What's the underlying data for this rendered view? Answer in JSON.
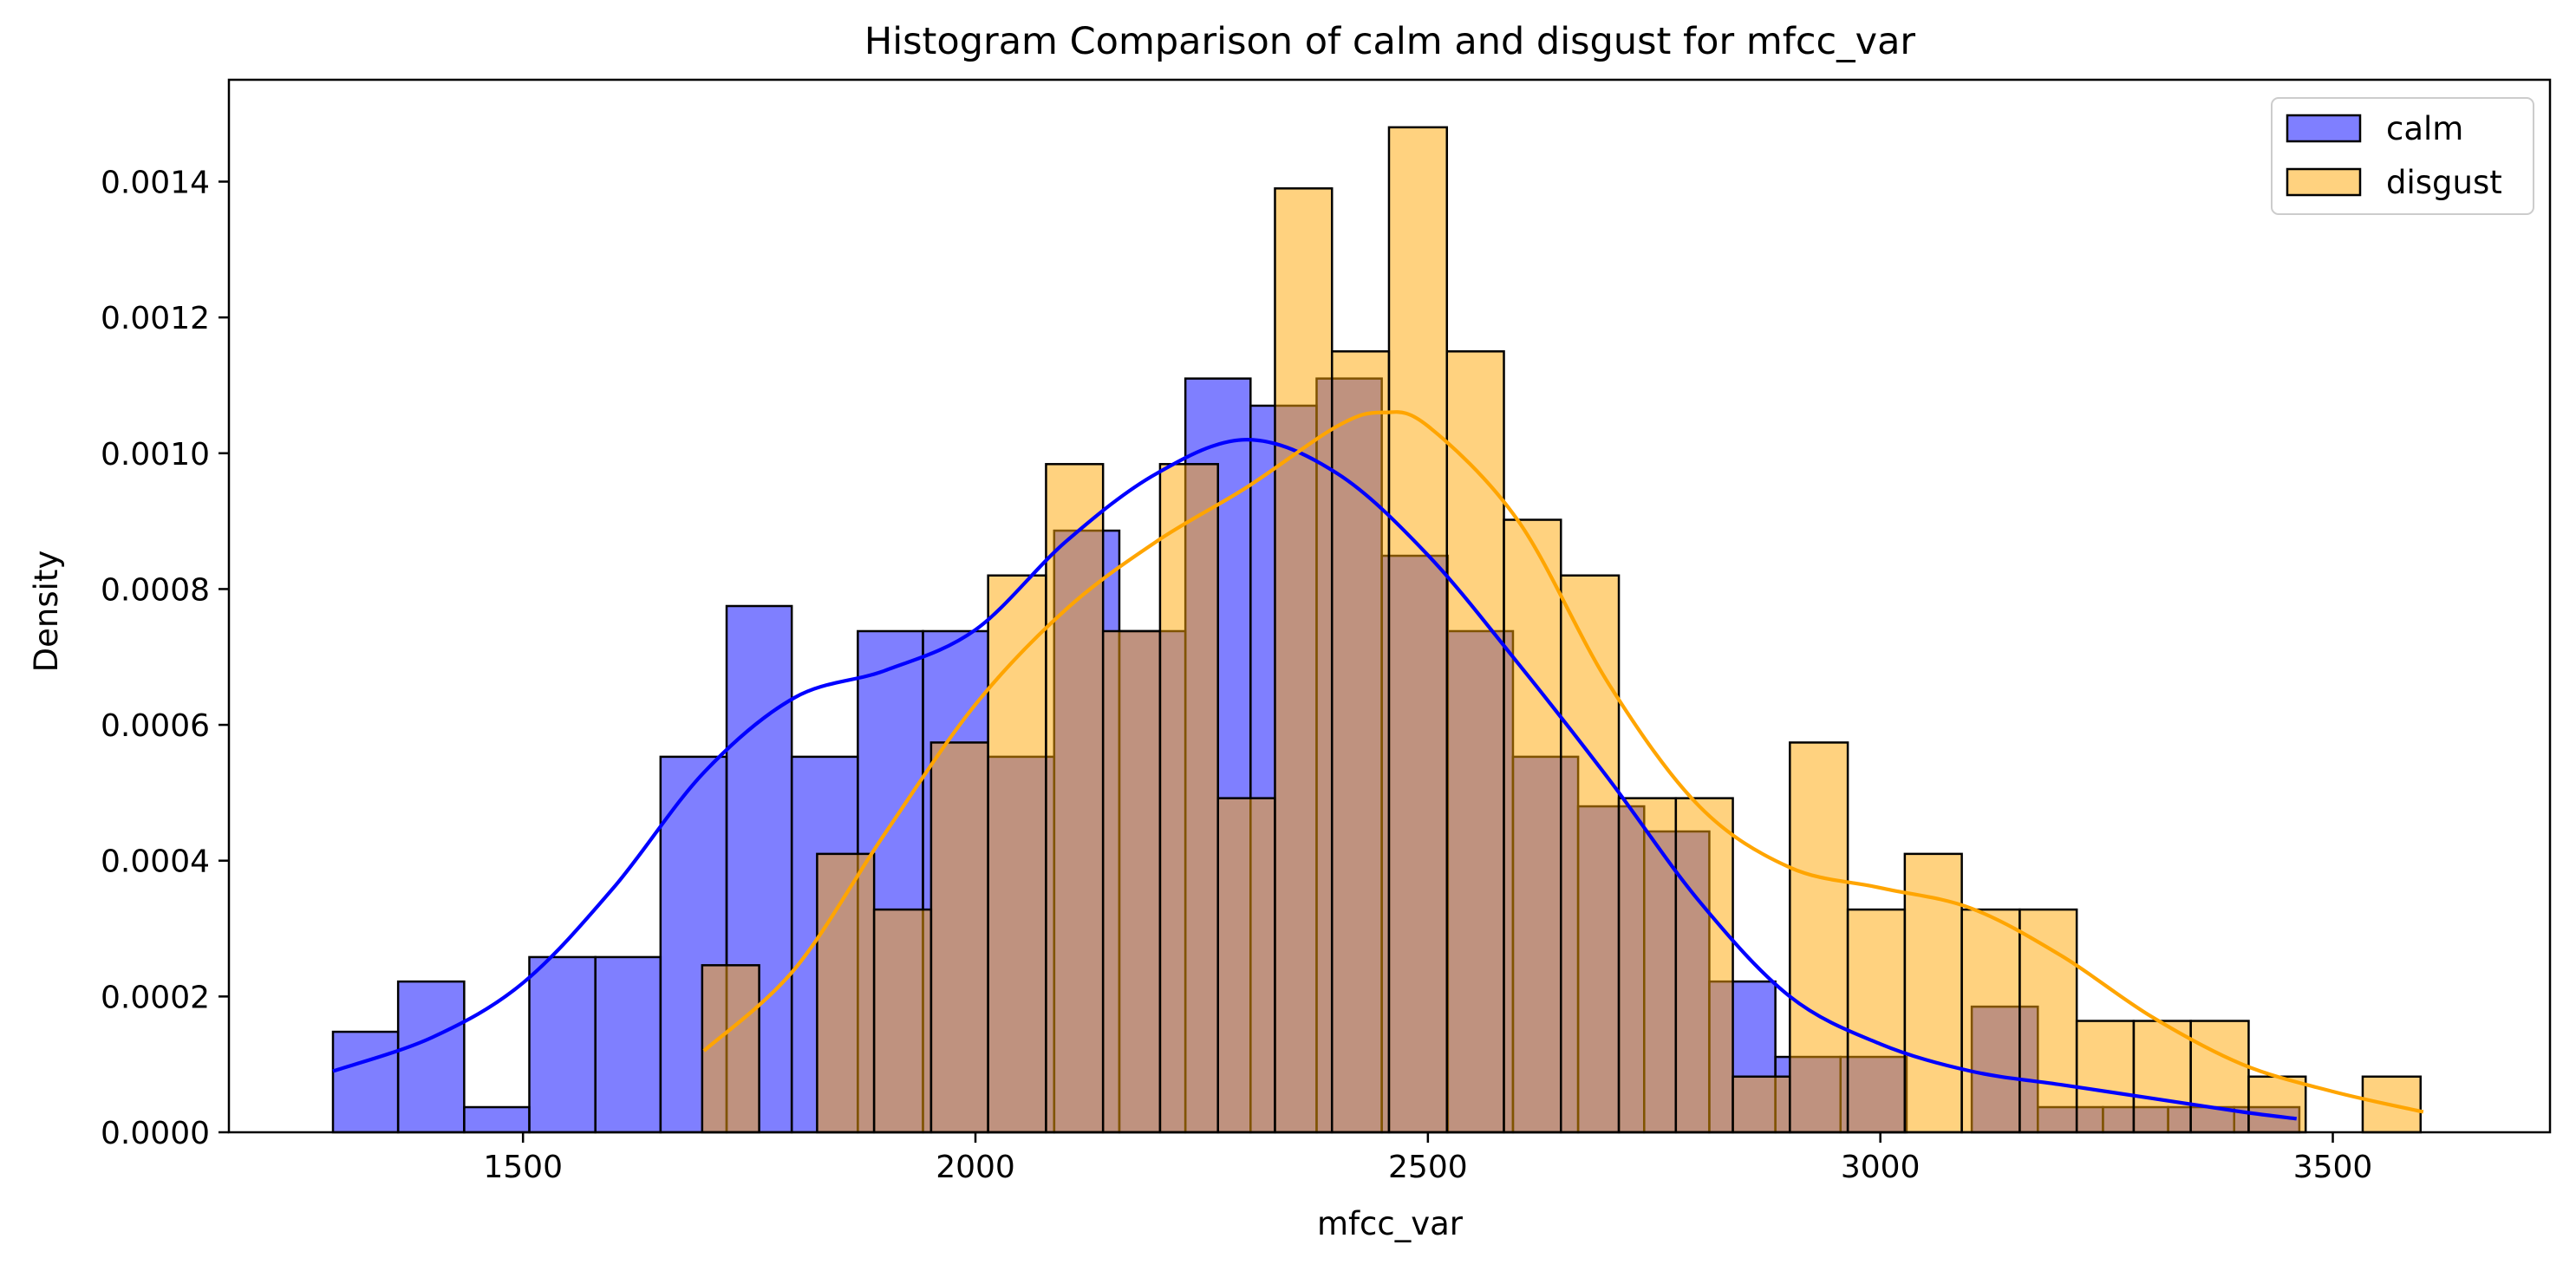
{
  "chart_data": {
    "type": "histogram",
    "title": "Histogram Comparison of calm and disgust for mfcc_var",
    "xlabel": "mfcc_var",
    "ylabel": "Density",
    "xlim": [
      1175,
      3740
    ],
    "ylim": [
      0,
      0.00155
    ],
    "x_ticks": [
      1500,
      2000,
      2500,
      3000,
      3500
    ],
    "x_tick_labels": [
      "1500",
      "2000",
      "2500",
      "3000",
      "3500"
    ],
    "y_ticks": [
      0,
      0.0002,
      0.0004,
      0.0006,
      0.0008,
      0.001,
      0.0012,
      0.0014
    ],
    "y_tick_labels": [
      "0.0000",
      "0.0002",
      "0.0004",
      "0.0006",
      "0.0008",
      "0.0010",
      "0.0012",
      "0.0014"
    ],
    "grid": false,
    "legend_position": "top-right",
    "series": [
      {
        "name": "calm",
        "color": "#0000ff",
        "fill_opacity": 0.5,
        "bins": [
          [
            1290,
            1362,
            0.000148
          ],
          [
            1362,
            1435,
            0.000222
          ],
          [
            1435,
            1507,
            3.7e-05
          ],
          [
            1507,
            1580,
            0.000258
          ],
          [
            1580,
            1652,
            0.000258
          ],
          [
            1652,
            1725,
            0.000553
          ],
          [
            1725,
            1797,
            0.000775
          ],
          [
            1797,
            1870,
            0.000553
          ],
          [
            1870,
            1942,
            0.000738
          ],
          [
            1942,
            2014,
            0.000738
          ],
          [
            2014,
            2087,
            0.000553
          ],
          [
            2087,
            2159,
            0.000886
          ],
          [
            2159,
            2232,
            0.000738
          ],
          [
            2232,
            2304,
            0.00111
          ],
          [
            2304,
            2377,
            0.00107
          ],
          [
            2377,
            2449,
            0.00111
          ],
          [
            2449,
            2522,
            0.000849
          ],
          [
            2522,
            2594,
            0.000738
          ],
          [
            2594,
            2666,
            0.000553
          ],
          [
            2666,
            2739,
            0.00048
          ],
          [
            2739,
            2811,
            0.000443
          ],
          [
            2811,
            2884,
            0.000222
          ],
          [
            2884,
            2956,
            0.000111
          ],
          [
            2956,
            3029,
            0.000111
          ],
          [
            3029,
            3101,
            0.0
          ],
          [
            3101,
            3174,
            0.000185
          ],
          [
            3174,
            3246,
            3.7e-05
          ],
          [
            3246,
            3318,
            3.7e-05
          ],
          [
            3318,
            3391,
            3.7e-05
          ],
          [
            3391,
            3463,
            3.7e-05
          ]
        ],
        "kde": [
          [
            1290,
            9e-05
          ],
          [
            1400,
            0.00014
          ],
          [
            1500,
            0.00022
          ],
          [
            1600,
            0.00036
          ],
          [
            1700,
            0.00053
          ],
          [
            1800,
            0.00064
          ],
          [
            1900,
            0.00068
          ],
          [
            2000,
            0.00074
          ],
          [
            2100,
            0.00087
          ],
          [
            2200,
            0.00097
          ],
          [
            2300,
            0.00102
          ],
          [
            2400,
            0.00097
          ],
          [
            2500,
            0.00085
          ],
          [
            2600,
            0.00069
          ],
          [
            2700,
            0.00052
          ],
          [
            2800,
            0.00034
          ],
          [
            2900,
            0.0002
          ],
          [
            3000,
            0.00013
          ],
          [
            3100,
            9e-05
          ],
          [
            3200,
            7e-05
          ],
          [
            3300,
            5e-05
          ],
          [
            3400,
            3e-05
          ],
          [
            3460,
            2e-05
          ]
        ]
      },
      {
        "name": "disgust",
        "color": "#ffa500",
        "fill_opacity": 0.5,
        "bins": [
          [
            1698,
            1761,
            0.000246
          ],
          [
            1761,
            1825,
            0.0
          ],
          [
            1825,
            1888,
            0.00041
          ],
          [
            1888,
            1951,
            0.000328
          ],
          [
            1951,
            2014,
            0.000574
          ],
          [
            2014,
            2078,
            0.00082
          ],
          [
            2078,
            2141,
            0.000984
          ],
          [
            2141,
            2204,
            0.000738
          ],
          [
            2204,
            2268,
            0.000984
          ],
          [
            2268,
            2331,
            0.000492
          ],
          [
            2331,
            2394,
            0.00139
          ],
          [
            2394,
            2457,
            0.00115
          ],
          [
            2457,
            2521,
            0.00148
          ],
          [
            2521,
            2584,
            0.00115
          ],
          [
            2584,
            2647,
            0.000902
          ],
          [
            2647,
            2711,
            0.00082
          ],
          [
            2711,
            2774,
            0.000492
          ],
          [
            2774,
            2837,
            0.000492
          ],
          [
            2837,
            2900,
            8.2e-05
          ],
          [
            2900,
            2964,
            0.000574
          ],
          [
            2964,
            3027,
            0.000328
          ],
          [
            3027,
            3090,
            0.00041
          ],
          [
            3090,
            3154,
            0.000328
          ],
          [
            3154,
            3217,
            0.000328
          ],
          [
            3217,
            3280,
            0.000164
          ],
          [
            3280,
            3343,
            0.000164
          ],
          [
            3343,
            3407,
            0.000164
          ],
          [
            3407,
            3470,
            8.2e-05
          ],
          [
            3470,
            3533,
            0.0
          ],
          [
            3533,
            3597,
            8.2e-05
          ]
        ],
        "kde": [
          [
            1700,
            0.00012
          ],
          [
            1800,
            0.00024
          ],
          [
            1900,
            0.00044
          ],
          [
            2000,
            0.00063
          ],
          [
            2100,
            0.00077
          ],
          [
            2200,
            0.00087
          ],
          [
            2300,
            0.00095
          ],
          [
            2400,
            0.00104
          ],
          [
            2450,
            0.00106
          ],
          [
            2500,
            0.00104
          ],
          [
            2600,
            0.0009
          ],
          [
            2700,
            0.00066
          ],
          [
            2800,
            0.00048
          ],
          [
            2900,
            0.00039
          ],
          [
            3000,
            0.00036
          ],
          [
            3100,
            0.00033
          ],
          [
            3200,
            0.00026
          ],
          [
            3300,
            0.00017
          ],
          [
            3400,
            0.0001
          ],
          [
            3500,
            6e-05
          ],
          [
            3600,
            3e-05
          ]
        ]
      }
    ]
  }
}
